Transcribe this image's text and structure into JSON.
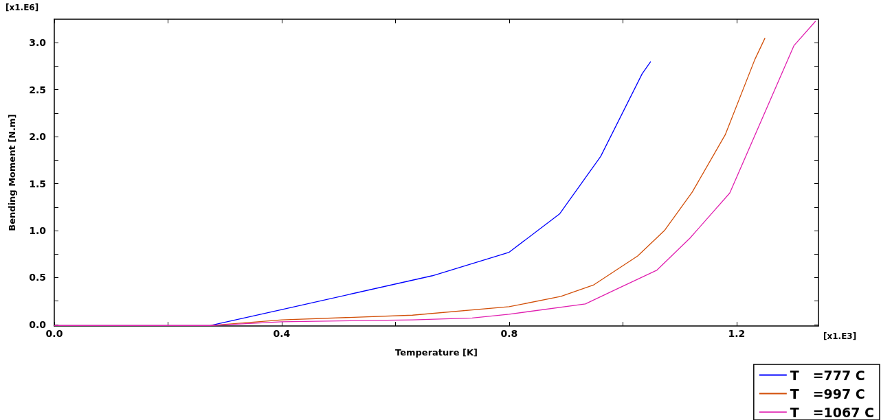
{
  "chart_data": {
    "type": "line",
    "xlabel": "Temperature [K]",
    "ylabel": "Bending Moment [N.m]",
    "annotations": [
      "[x1.E6]",
      "[x1.E3]"
    ],
    "xlim": [
      0,
      1.344
    ],
    "ylim": [
      -0.015,
      3.25
    ],
    "xticks": [
      {
        "value": 0,
        "label": "0.0"
      },
      {
        "value": 0.2,
        "label": null
      },
      0.4,
      {
        "value": 0.6,
        "label": null
      },
      0.8,
      {
        "value": 1.0,
        "label": null
      },
      1.2
    ],
    "yticks": [
      {
        "value": 0,
        "label": "0.0"
      },
      {
        "value": 0.25,
        "label": null
      },
      0.5,
      {
        "value": 0.75,
        "label": null
      },
      {
        "value": 1,
        "label": "1.0"
      },
      {
        "value": 1.25,
        "label": null
      },
      1.5,
      {
        "value": 1.75,
        "label": null
      },
      {
        "value": 2,
        "label": "2.0"
      },
      {
        "value": 2.25,
        "label": null
      },
      2.5,
      {
        "value": 2.75,
        "label": null
      },
      {
        "value": 3,
        "label": "3.0"
      }
    ],
    "grid": false,
    "legend": "bottom right",
    "marker": "none",
    "line_style": "solid",
    "series": [
      {
        "name": "T   =777 C",
        "color": "#0000ff",
        "x": [
          0,
          0.274,
          0.4,
          0.665,
          0.8,
          0.889,
          0.961,
          1.034,
          1.049
        ],
        "values": [
          -0.01,
          -0.01,
          0.16,
          0.52,
          0.77,
          1.18,
          1.79,
          2.67,
          2.8
        ]
      },
      {
        "name": "T   =997 C",
        "color": "#d2500a",
        "x": [
          0,
          0.274,
          0.4,
          0.63,
          0.8,
          0.891,
          0.948,
          1.026,
          1.073,
          1.122,
          1.18,
          1.232,
          1.25
        ],
        "values": [
          -0.01,
          -0.01,
          0.05,
          0.1,
          0.19,
          0.3,
          0.42,
          0.73,
          1.0,
          1.41,
          2.02,
          2.82,
          3.05
        ]
      },
      {
        "name": "T   =1067 C",
        "color": "#e020b0",
        "x": [
          0,
          0.274,
          0.4,
          0.63,
          0.735,
          0.8,
          0.934,
          0.99,
          1.06,
          1.118,
          1.188,
          1.301,
          1.339
        ],
        "values": [
          -0.01,
          -0.01,
          0.03,
          0.05,
          0.07,
          0.11,
          0.22,
          0.38,
          0.58,
          0.92,
          1.4,
          2.97,
          3.23
        ]
      }
    ]
  }
}
